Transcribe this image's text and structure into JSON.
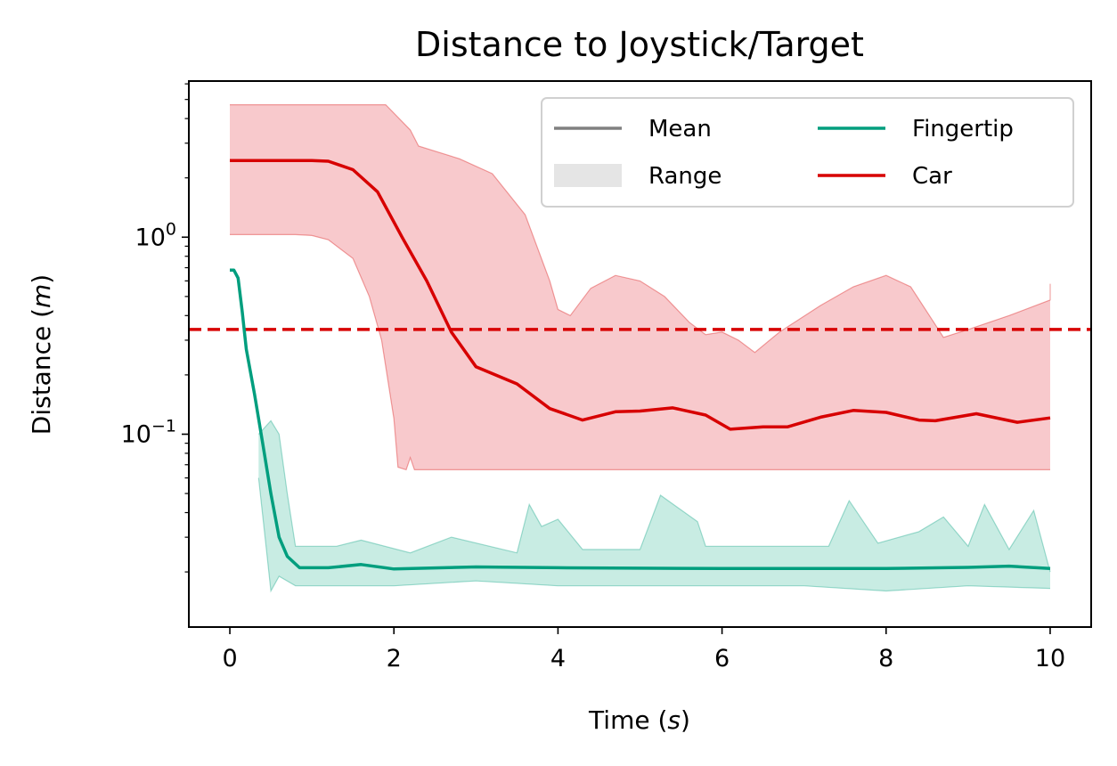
{
  "chart_data": {
    "type": "line",
    "title": "Distance to Joystick/Target",
    "xlabel": "Time (s)",
    "ylabel": "Distance (m)",
    "xlim": [
      -0.5,
      10.5
    ],
    "ylim": [
      0.0105,
      6.2
    ],
    "yscale": "log",
    "grid": false,
    "legend_position": "top-right",
    "x_ticks": [
      0,
      2,
      4,
      6,
      8,
      10
    ],
    "x_tick_labels": [
      "0",
      "2",
      "4",
      "6",
      "8",
      "10"
    ],
    "y_ticks": [
      {
        "value": 1.0,
        "base": "10",
        "exp": "0"
      },
      {
        "value": 0.1,
        "base": "10",
        "exp": "−1"
      }
    ],
    "threshold": {
      "value": 0.34,
      "color": "#d70000",
      "style": "dashed"
    },
    "legend": {
      "entries": [
        {
          "label": "Mean",
          "kind": "line",
          "color": "#808080"
        },
        {
          "label": "Range",
          "kind": "patch",
          "color": "#e5e5e5"
        },
        {
          "label": "Fingertip",
          "kind": "line",
          "color": "#009e7e"
        },
        {
          "label": "Car",
          "kind": "line",
          "color": "#d70000"
        }
      ]
    },
    "series": [
      {
        "name": "Car",
        "color": "#d70000",
        "fill": "#f8c9cc",
        "mean": [
          [
            0,
            2.45
          ],
          [
            1,
            2.45
          ],
          [
            1.2,
            2.43
          ],
          [
            1.5,
            2.2
          ],
          [
            1.8,
            1.7
          ],
          [
            2.1,
            1.0
          ],
          [
            2.4,
            0.6
          ],
          [
            2.7,
            0.33
          ],
          [
            3.0,
            0.22
          ],
          [
            3.5,
            0.18
          ],
          [
            3.9,
            0.135
          ],
          [
            4.3,
            0.118
          ],
          [
            4.7,
            0.13
          ],
          [
            5.0,
            0.131
          ],
          [
            5.4,
            0.136
          ],
          [
            5.8,
            0.125
          ],
          [
            6.1,
            0.106
          ],
          [
            6.5,
            0.109
          ],
          [
            6.8,
            0.109
          ],
          [
            7.2,
            0.122
          ],
          [
            7.6,
            0.132
          ],
          [
            8.0,
            0.129
          ],
          [
            8.4,
            0.118
          ],
          [
            8.6,
            0.117
          ],
          [
            9.1,
            0.127
          ],
          [
            9.6,
            0.115
          ],
          [
            10,
            0.121
          ]
        ],
        "upper": [
          [
            0,
            4.7
          ],
          [
            1.9,
            4.7
          ],
          [
            2.2,
            3.5
          ],
          [
            2.3,
            2.9
          ],
          [
            2.8,
            2.5
          ],
          [
            3.2,
            2.1
          ],
          [
            3.6,
            1.3
          ],
          [
            3.9,
            0.6
          ],
          [
            4.0,
            0.43
          ],
          [
            4.15,
            0.4
          ],
          [
            4.4,
            0.55
          ],
          [
            4.7,
            0.64
          ],
          [
            5.0,
            0.6
          ],
          [
            5.3,
            0.5
          ],
          [
            5.6,
            0.37
          ],
          [
            5.8,
            0.32
          ],
          [
            6.0,
            0.33
          ],
          [
            6.2,
            0.3
          ],
          [
            6.4,
            0.26
          ],
          [
            6.7,
            0.33
          ],
          [
            7.2,
            0.45
          ],
          [
            7.6,
            0.56
          ],
          [
            8.0,
            0.64
          ],
          [
            8.3,
            0.56
          ],
          [
            8.6,
            0.36
          ],
          [
            8.7,
            0.31
          ],
          [
            9.0,
            0.34
          ],
          [
            9.5,
            0.4
          ],
          [
            10,
            0.48
          ],
          [
            10,
            0.58
          ]
        ],
        "lower": [
          [
            0,
            1.03
          ],
          [
            0.8,
            1.03
          ],
          [
            1.0,
            1.02
          ],
          [
            1.2,
            0.97
          ],
          [
            1.5,
            0.78
          ],
          [
            1.7,
            0.5
          ],
          [
            1.85,
            0.3
          ],
          [
            2.0,
            0.12
          ],
          [
            2.05,
            0.068
          ],
          [
            2.15,
            0.066
          ],
          [
            2.2,
            0.076
          ],
          [
            2.25,
            0.066
          ],
          [
            10,
            0.066
          ]
        ]
      },
      {
        "name": "Fingertip",
        "color": "#009e7e",
        "fill": "#c8ece3",
        "mean": [
          [
            0,
            0.68
          ],
          [
            0.05,
            0.68
          ],
          [
            0.1,
            0.62
          ],
          [
            0.15,
            0.42
          ],
          [
            0.2,
            0.27
          ],
          [
            0.3,
            0.16
          ],
          [
            0.4,
            0.09
          ],
          [
            0.5,
            0.05
          ],
          [
            0.6,
            0.03
          ],
          [
            0.7,
            0.024
          ],
          [
            0.85,
            0.021
          ],
          [
            1.2,
            0.021
          ],
          [
            1.6,
            0.0218
          ],
          [
            2.0,
            0.0207
          ],
          [
            3.0,
            0.0212
          ],
          [
            4.0,
            0.021
          ],
          [
            6.0,
            0.0208
          ],
          [
            8.0,
            0.0208
          ],
          [
            9.0,
            0.0211
          ],
          [
            9.5,
            0.0214
          ],
          [
            10,
            0.0208
          ]
        ],
        "upper": [
          [
            0.35,
            0.1
          ],
          [
            0.5,
            0.117
          ],
          [
            0.6,
            0.1
          ],
          [
            0.7,
            0.05
          ],
          [
            0.8,
            0.027
          ],
          [
            1.3,
            0.027
          ],
          [
            1.6,
            0.029
          ],
          [
            2.2,
            0.025
          ],
          [
            2.7,
            0.03
          ],
          [
            3.5,
            0.025
          ],
          [
            3.65,
            0.044
          ],
          [
            3.8,
            0.034
          ],
          [
            4.0,
            0.037
          ],
          [
            4.3,
            0.026
          ],
          [
            5.0,
            0.026
          ],
          [
            5.25,
            0.049
          ],
          [
            5.7,
            0.036
          ],
          [
            5.8,
            0.027
          ],
          [
            7.3,
            0.027
          ],
          [
            7.55,
            0.046
          ],
          [
            7.9,
            0.028
          ],
          [
            8.4,
            0.032
          ],
          [
            8.7,
            0.038
          ],
          [
            9.0,
            0.027
          ],
          [
            9.2,
            0.044
          ],
          [
            9.5,
            0.026
          ],
          [
            9.8,
            0.041
          ],
          [
            10,
            0.02
          ]
        ],
        "lower": [
          [
            0.35,
            0.06
          ],
          [
            0.45,
            0.025
          ],
          [
            0.5,
            0.016
          ],
          [
            0.6,
            0.019
          ],
          [
            0.8,
            0.017
          ],
          [
            2.0,
            0.017
          ],
          [
            3.0,
            0.018
          ],
          [
            4.0,
            0.017
          ],
          [
            5.0,
            0.017
          ],
          [
            6.0,
            0.017
          ],
          [
            7.0,
            0.017
          ],
          [
            8.0,
            0.016
          ],
          [
            9.0,
            0.017
          ],
          [
            10,
            0.0165
          ]
        ]
      }
    ]
  }
}
